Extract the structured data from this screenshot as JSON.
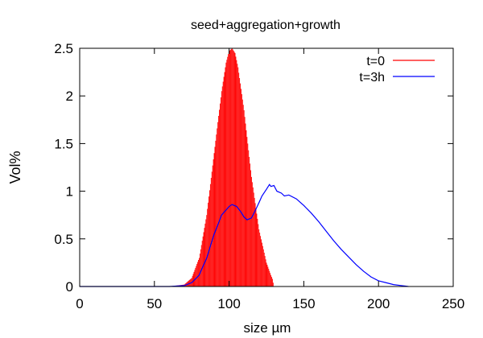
{
  "chart_data": {
    "type": "line",
    "title": "seed+aggregation+growth",
    "xlabel": "size µm",
    "ylabel": "Vol%",
    "xlim": [
      0,
      250
    ],
    "ylim": [
      0,
      2.5
    ],
    "xticks": [
      0,
      50,
      100,
      150,
      200,
      250
    ],
    "yticks": [
      0,
      0.5,
      1,
      1.5,
      2,
      2.5
    ],
    "xtick_labels": [
      "0",
      "50",
      "100",
      "150",
      "200",
      "250"
    ],
    "ytick_labels": [
      "0",
      "0.5",
      "1",
      "1.5",
      "2",
      "2.5"
    ],
    "grid": false,
    "legend_position": "top-right",
    "series": [
      {
        "name": "t=0",
        "color": "#ff0000",
        "style": "impulses",
        "x": [
          0,
          60,
          70,
          75,
          80,
          85,
          90,
          95,
          98,
          100,
          102,
          104,
          106,
          110,
          115,
          120,
          125,
          128,
          129,
          130
        ],
        "y": [
          0,
          0,
          0.02,
          0.09,
          0.3,
          0.75,
          1.4,
          2.05,
          2.35,
          2.47,
          2.5,
          2.45,
          2.3,
          1.85,
          1.15,
          0.6,
          0.25,
          0.12,
          0.08,
          0
        ]
      },
      {
        "name": "t=3h",
        "color": "#0000ff",
        "style": "line",
        "x": [
          0,
          60,
          70,
          75,
          80,
          85,
          90,
          95,
          100,
          102,
          105,
          108,
          110,
          112,
          115,
          117,
          120,
          122,
          125,
          127,
          128,
          130,
          132,
          135,
          137,
          140,
          145,
          150,
          155,
          160,
          165,
          170,
          175,
          180,
          185,
          190,
          195,
          200,
          205,
          210,
          215,
          218,
          220
        ],
        "y": [
          0,
          0,
          0.01,
          0.04,
          0.12,
          0.3,
          0.55,
          0.75,
          0.84,
          0.86,
          0.84,
          0.78,
          0.73,
          0.7,
          0.72,
          0.78,
          0.88,
          0.95,
          1.02,
          1.07,
          1.05,
          1.06,
          1.0,
          0.98,
          0.95,
          0.96,
          0.92,
          0.85,
          0.77,
          0.68,
          0.58,
          0.48,
          0.39,
          0.31,
          0.23,
          0.16,
          0.1,
          0.06,
          0.04,
          0.02,
          0.01,
          0.005,
          0
        ]
      }
    ]
  }
}
